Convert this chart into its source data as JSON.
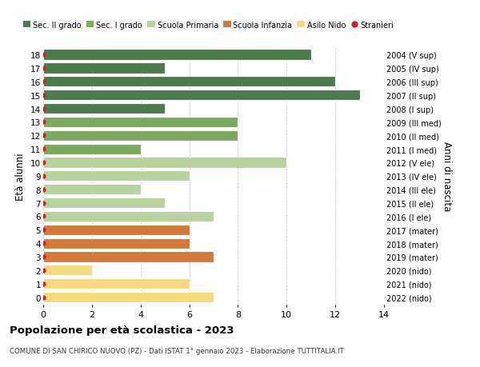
{
  "ages": [
    18,
    17,
    16,
    15,
    14,
    13,
    12,
    11,
    10,
    9,
    8,
    7,
    6,
    5,
    4,
    3,
    2,
    1,
    0
  ],
  "right_labels": [
    "2004 (V sup)",
    "2005 (IV sup)",
    "2006 (III sup)",
    "2007 (II sup)",
    "2008 (I sup)",
    "2009 (III med)",
    "2010 (II med)",
    "2011 (I med)",
    "2012 (V ele)",
    "2013 (IV ele)",
    "2014 (III ele)",
    "2015 (II ele)",
    "2016 (I ele)",
    "2017 (mater)",
    "2018 (mater)",
    "2019 (mater)",
    "2020 (nido)",
    "2021 (nido)",
    "2022 (nido)"
  ],
  "values": [
    11,
    5,
    12,
    13,
    5,
    8,
    8,
    4,
    10,
    6,
    4,
    5,
    7,
    6,
    6,
    7,
    2,
    6,
    7
  ],
  "bar_colors": [
    "#4a7c4e",
    "#4a7c4e",
    "#4a7c4e",
    "#4a7c4e",
    "#4a7c4e",
    "#7aab5e",
    "#7aab5e",
    "#7aab5e",
    "#b8d49e",
    "#b8d49e",
    "#b8d49e",
    "#b8d49e",
    "#b8d49e",
    "#d4793a",
    "#d4793a",
    "#d4793a",
    "#f5d97a",
    "#f5d97a",
    "#f5d97a"
  ],
  "legend_labels": [
    "Sec. II grado",
    "Sec. I grado",
    "Scuola Primaria",
    "Scuola Infanzia",
    "Asilo Nido",
    "Stranieri"
  ],
  "legend_colors": [
    "#4a7c4e",
    "#7aab5e",
    "#b8d49e",
    "#d4793a",
    "#f5d97a",
    "#cc2222"
  ],
  "title": "Popolazione per età scolastica - 2023",
  "subtitle": "COMUNE DI SAN CHIRICO NUOVO (PZ) - Dati ISTAT 1° gennaio 2023 - Elaborazione TUTTITALIA.IT",
  "ylabel": "Età alunni",
  "right_ylabel": "Anni di nascita",
  "xlim": [
    0,
    14
  ],
  "xticks": [
    0,
    2,
    4,
    6,
    8,
    10,
    12,
    14
  ],
  "background_color": "#ffffff",
  "grid_color": "#cccccc",
  "dot_color": "#cc2222",
  "bar_height": 0.78
}
